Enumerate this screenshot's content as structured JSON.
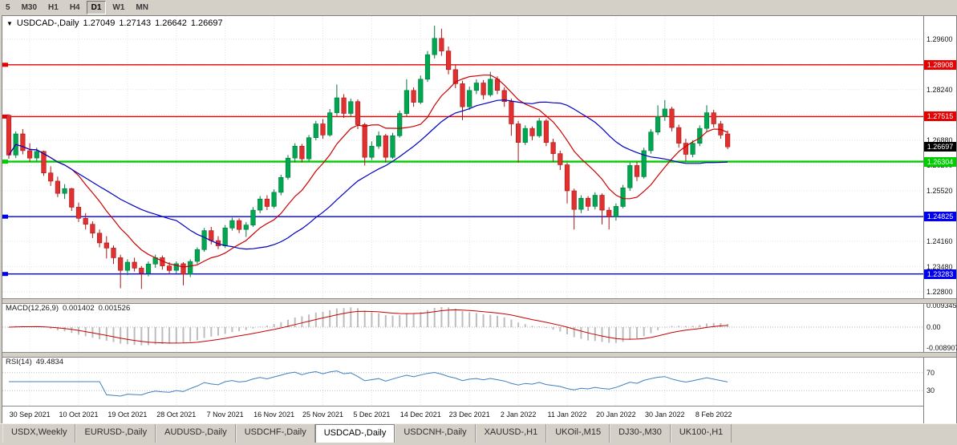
{
  "toolbar": {
    "timeframes": [
      {
        "label": "5",
        "active": false
      },
      {
        "label": "M30",
        "active": false
      },
      {
        "label": "H1",
        "active": false
      },
      {
        "label": "H4",
        "active": false
      },
      {
        "label": "D1",
        "active": true
      },
      {
        "label": "W1",
        "active": false
      },
      {
        "label": "MN",
        "active": false
      }
    ]
  },
  "chart": {
    "header": {
      "dropdown_icon": "▼",
      "symbol": "USDCAD-,Daily",
      "open": "1.27049",
      "high": "1.27143",
      "low": "1.26642",
      "close": "1.26697"
    },
    "macd": {
      "label": "MACD(12,26,9)",
      "value_main": "0.001402",
      "value_signal": "0.001526"
    },
    "rsi": {
      "label": "RSI(14)",
      "value": "49.4834"
    }
  },
  "chart_data": {
    "type": "candlestick",
    "symbol": "USDCAD-",
    "timeframe": "Daily",
    "ohlc_display": [
      "1.27049",
      "1.27143",
      "1.26642",
      "1.26697"
    ],
    "price_range": [
      1.2263,
      1.3022
    ],
    "y_axis_labels": [
      "1.29600",
      "1.28920",
      "1.28240",
      "1.27560",
      "1.26880",
      "1.26200",
      "1.25520",
      "1.24840",
      "1.24160",
      "1.23480",
      "1.22800"
    ],
    "x_tick_indices": [
      3,
      10,
      17,
      24,
      31,
      38,
      45,
      52,
      59,
      66,
      73,
      80,
      87,
      94,
      101
    ],
    "x_tick_labels": [
      "30 Sep 2021",
      "10 Oct 2021",
      "19 Oct 2021",
      "28 Oct 2021",
      "7 Nov 2021",
      "16 Nov 2021",
      "25 Nov 2021",
      "5 Dec 2021",
      "14 Dec 2021",
      "23 Dec 2021",
      "2 Jan 2022",
      "11 Jan 2022",
      "20 Jan 2022",
      "30 Jan 2022",
      "8 Feb 2022"
    ],
    "candles": [
      [
        1.2755,
        1.2758,
        1.2638,
        1.2648
      ],
      [
        1.2648,
        1.2712,
        1.264,
        1.2705
      ],
      [
        1.2705,
        1.2718,
        1.265,
        1.266
      ],
      [
        1.266,
        1.268,
        1.263,
        1.264
      ],
      [
        1.264,
        1.2668,
        1.2632,
        1.2658
      ],
      [
        1.2658,
        1.266,
        1.2592,
        1.26
      ],
      [
        1.26,
        1.2618,
        1.2565,
        1.2578
      ],
      [
        1.2578,
        1.259,
        1.2535,
        1.2545
      ],
      [
        1.2545,
        1.257,
        1.253,
        1.2558
      ],
      [
        1.2558,
        1.256,
        1.2498,
        1.2508
      ],
      [
        1.2508,
        1.252,
        1.2468,
        1.2478
      ],
      [
        1.2478,
        1.2492,
        1.2448,
        1.2462
      ],
      [
        1.2462,
        1.247,
        1.2425,
        1.2438
      ],
      [
        1.2438,
        1.2448,
        1.24,
        1.2412
      ],
      [
        1.2412,
        1.243,
        1.237,
        1.2398
      ],
      [
        1.2398,
        1.2405,
        1.2355,
        1.2372
      ],
      [
        1.2372,
        1.238,
        1.229,
        1.2338
      ],
      [
        1.2338,
        1.2368,
        1.2325,
        1.236
      ],
      [
        1.236,
        1.2372,
        1.2335,
        1.2344
      ],
      [
        1.2344,
        1.235,
        1.2288,
        1.233
      ],
      [
        1.233,
        1.2362,
        1.2322,
        1.2355
      ],
      [
        1.2355,
        1.238,
        1.2345,
        1.2372
      ],
      [
        1.2372,
        1.2378,
        1.234,
        1.235
      ],
      [
        1.235,
        1.236,
        1.2328,
        1.2338
      ],
      [
        1.2338,
        1.2362,
        1.233,
        1.2356
      ],
      [
        1.2356,
        1.236,
        1.2298,
        1.2328
      ],
      [
        1.2328,
        1.2368,
        1.232,
        1.2362
      ],
      [
        1.2362,
        1.24,
        1.2355,
        1.2394
      ],
      [
        1.2394,
        1.2452,
        1.2388,
        1.2445
      ],
      [
        1.2445,
        1.2455,
        1.2408,
        1.2418
      ],
      [
        1.2418,
        1.243,
        1.2395,
        1.2404
      ],
      [
        1.2404,
        1.246,
        1.2398,
        1.2452
      ],
      [
        1.2452,
        1.248,
        1.2445,
        1.2472
      ],
      [
        1.2472,
        1.2478,
        1.2438,
        1.2448
      ],
      [
        1.2448,
        1.2468,
        1.2428,
        1.246
      ],
      [
        1.246,
        1.2508,
        1.2455,
        1.25
      ],
      [
        1.25,
        1.2538,
        1.2492,
        1.253
      ],
      [
        1.253,
        1.254,
        1.25,
        1.251
      ],
      [
        1.251,
        1.2556,
        1.2505,
        1.2548
      ],
      [
        1.2548,
        1.2595,
        1.254,
        1.2588
      ],
      [
        1.2588,
        1.2648,
        1.2582,
        1.264
      ],
      [
        1.264,
        1.268,
        1.2628,
        1.2672
      ],
      [
        1.2672,
        1.2678,
        1.2628,
        1.2638
      ],
      [
        1.2638,
        1.2702,
        1.2632,
        1.2695
      ],
      [
        1.2695,
        1.274,
        1.2688,
        1.2732
      ],
      [
        1.2732,
        1.2745,
        1.2692,
        1.2702
      ],
      [
        1.2702,
        1.2772,
        1.2698,
        1.2762
      ],
      [
        1.2762,
        1.2838,
        1.2752,
        1.2802
      ],
      [
        1.2802,
        1.2812,
        1.2748,
        1.276
      ],
      [
        1.276,
        1.28,
        1.275,
        1.2792
      ],
      [
        1.2792,
        1.2798,
        1.2718,
        1.273
      ],
      [
        1.273,
        1.2735,
        1.262,
        1.2642
      ],
      [
        1.2642,
        1.2685,
        1.2635,
        1.2672
      ],
      [
        1.2672,
        1.2712,
        1.2665,
        1.27
      ],
      [
        1.27,
        1.2705,
        1.2628,
        1.2642
      ],
      [
        1.2642,
        1.2708,
        1.2638,
        1.27
      ],
      [
        1.27,
        1.2768,
        1.2695,
        1.276
      ],
      [
        1.276,
        1.2852,
        1.2752,
        1.2822
      ],
      [
        1.2822,
        1.283,
        1.2778,
        1.279
      ],
      [
        1.279,
        1.2862,
        1.2785,
        1.2852
      ],
      [
        1.2852,
        1.2928,
        1.2845,
        1.2918
      ],
      [
        1.2918,
        1.2996,
        1.2908,
        1.2962
      ],
      [
        1.2962,
        1.2988,
        1.2915,
        1.2928
      ],
      [
        1.2928,
        1.294,
        1.2865,
        1.2878
      ],
      [
        1.2878,
        1.289,
        1.2828,
        1.284
      ],
      [
        1.284,
        1.2848,
        1.2742,
        1.2778
      ],
      [
        1.2778,
        1.2832,
        1.277,
        1.2822
      ],
      [
        1.2822,
        1.2852,
        1.2812,
        1.2842
      ],
      [
        1.2842,
        1.285,
        1.2798,
        1.281
      ],
      [
        1.281,
        1.2872,
        1.2805,
        1.2852
      ],
      [
        1.2852,
        1.286,
        1.2812,
        1.2822
      ],
      [
        1.2822,
        1.283,
        1.2778,
        1.2792
      ],
      [
        1.2792,
        1.28,
        1.27,
        1.2732
      ],
      [
        1.2732,
        1.274,
        1.2628,
        1.2682
      ],
      [
        1.2682,
        1.2728,
        1.2675,
        1.272
      ],
      [
        1.272,
        1.2725,
        1.2688,
        1.27
      ],
      [
        1.27,
        1.2748,
        1.2695,
        1.274
      ],
      [
        1.274,
        1.2745,
        1.2672,
        1.2682
      ],
      [
        1.2682,
        1.2692,
        1.263,
        1.2652
      ],
      [
        1.2652,
        1.266,
        1.2608,
        1.2622
      ],
      [
        1.2622,
        1.2628,
        1.2518,
        1.2552
      ],
      [
        1.2552,
        1.2558,
        1.2448,
        1.2502
      ],
      [
        1.2502,
        1.254,
        1.2492,
        1.2532
      ],
      [
        1.2532,
        1.2538,
        1.2498,
        1.251
      ],
      [
        1.251,
        1.2548,
        1.2502,
        1.254
      ],
      [
        1.254,
        1.2545,
        1.2462,
        1.25
      ],
      [
        1.25,
        1.2508,
        1.2448,
        1.2482
      ],
      [
        1.2482,
        1.2518,
        1.2472,
        1.251
      ],
      [
        1.251,
        1.2568,
        1.2505,
        1.256
      ],
      [
        1.256,
        1.2628,
        1.2552,
        1.262
      ],
      [
        1.262,
        1.263,
        1.2578,
        1.259
      ],
      [
        1.259,
        1.2668,
        1.2585,
        1.266
      ],
      [
        1.266,
        1.2718,
        1.2652,
        1.271
      ],
      [
        1.271,
        1.2782,
        1.2702,
        1.2752
      ],
      [
        1.2752,
        1.2796,
        1.274,
        1.2772
      ],
      [
        1.2772,
        1.2778,
        1.2712,
        1.2722
      ],
      [
        1.2722,
        1.273,
        1.2668,
        1.268
      ],
      [
        1.268,
        1.2692,
        1.2632,
        1.265
      ],
      [
        1.265,
        1.2688,
        1.2642,
        1.268
      ],
      [
        1.268,
        1.2728,
        1.2672,
        1.272
      ],
      [
        1.272,
        1.2782,
        1.2712,
        1.2762
      ],
      [
        1.2762,
        1.277,
        1.2722,
        1.2732
      ],
      [
        1.2732,
        1.274,
        1.2692,
        1.2702
      ],
      [
        1.2705,
        1.2714,
        1.2664,
        1.267
      ]
    ],
    "hlines": [
      {
        "price": 1.28908,
        "text": "1.28908",
        "color": "#E60000",
        "width": 1.4
      },
      {
        "price": 1.27515,
        "text": "1.27515",
        "color": "#E60000",
        "width": 1.4
      },
      {
        "price": 1.26304,
        "text": "1.26304",
        "color": "#00CC00",
        "width": 2.4
      },
      {
        "price": 1.24825,
        "text": "1.24825",
        "color": "#0000EE",
        "width": 1.4
      },
      {
        "price": 1.23283,
        "text": "1.23283",
        "color": "#0000EE",
        "width": 1.4
      }
    ],
    "current_price": {
      "price": 1.26697,
      "text": "1.26697",
      "color": "#000000"
    },
    "moving_averages": [
      {
        "name": "fast-ma",
        "period": 10,
        "color": "#CC0000"
      },
      {
        "name": "slow-ma",
        "period": 25,
        "color": "#0000C0"
      }
    ],
    "macd": {
      "params": [
        12,
        26,
        9
      ],
      "axis_labels": [
        {
          "text": "0.009345",
          "value": 0.009345
        },
        {
          "text": "0.00",
          "value": 0
        },
        {
          "text": "-0.008907",
          "value": -0.008907
        }
      ],
      "histogram_color": "#BDBDBD",
      "signal_color": "#C80000"
    },
    "rsi": {
      "period": 14,
      "levels": [
        {
          "text": "70",
          "value": 70
        },
        {
          "text": "30",
          "value": 30
        }
      ],
      "color": "#4080C0"
    },
    "colors": {
      "bull": "#00A650",
      "bull_stroke": "#007A3C",
      "bear": "#E03030",
      "bear_stroke": "#A81818",
      "grid": "#E4E4E4"
    }
  },
  "tabs": [
    {
      "label": "USDX,Weekly",
      "active": false
    },
    {
      "label": "EURUSD-,Daily",
      "active": false
    },
    {
      "label": "AUDUSD-,Daily",
      "active": false
    },
    {
      "label": "USDCHF-,Daily",
      "active": false
    },
    {
      "label": "USDCAD-,Daily",
      "active": true
    },
    {
      "label": "USDCNH-,Daily",
      "active": false
    },
    {
      "label": "XAUUSD-,H1",
      "active": false
    },
    {
      "label": "UKOil-,M15",
      "active": false
    },
    {
      "label": "DJ30-,M30",
      "active": false
    },
    {
      "label": "UK100-,H1",
      "active": false
    }
  ]
}
